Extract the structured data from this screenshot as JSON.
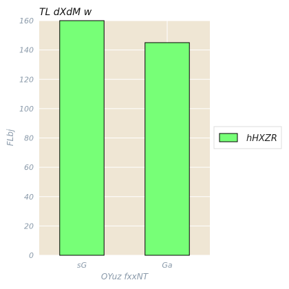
{
  "chart_data": {
    "type": "bar",
    "title": "TL dXdM w",
    "xlabel": "OYuz fxxNT",
    "ylabel": "FLbj",
    "categories": [
      "sG",
      "Ga"
    ],
    "series": [
      {
        "name": "hHXZR",
        "values": [
          160,
          145
        ],
        "color": "#77ff77"
      }
    ],
    "ylim": [
      0,
      160
    ],
    "yticks": [
      0,
      20,
      40,
      60,
      80,
      100,
      120,
      140,
      160
    ],
    "grid": true,
    "legend_position": "outside-right",
    "plot_background": "#efe6d4",
    "grid_color": "#ffffff",
    "bar_edge_color": "#000000"
  }
}
